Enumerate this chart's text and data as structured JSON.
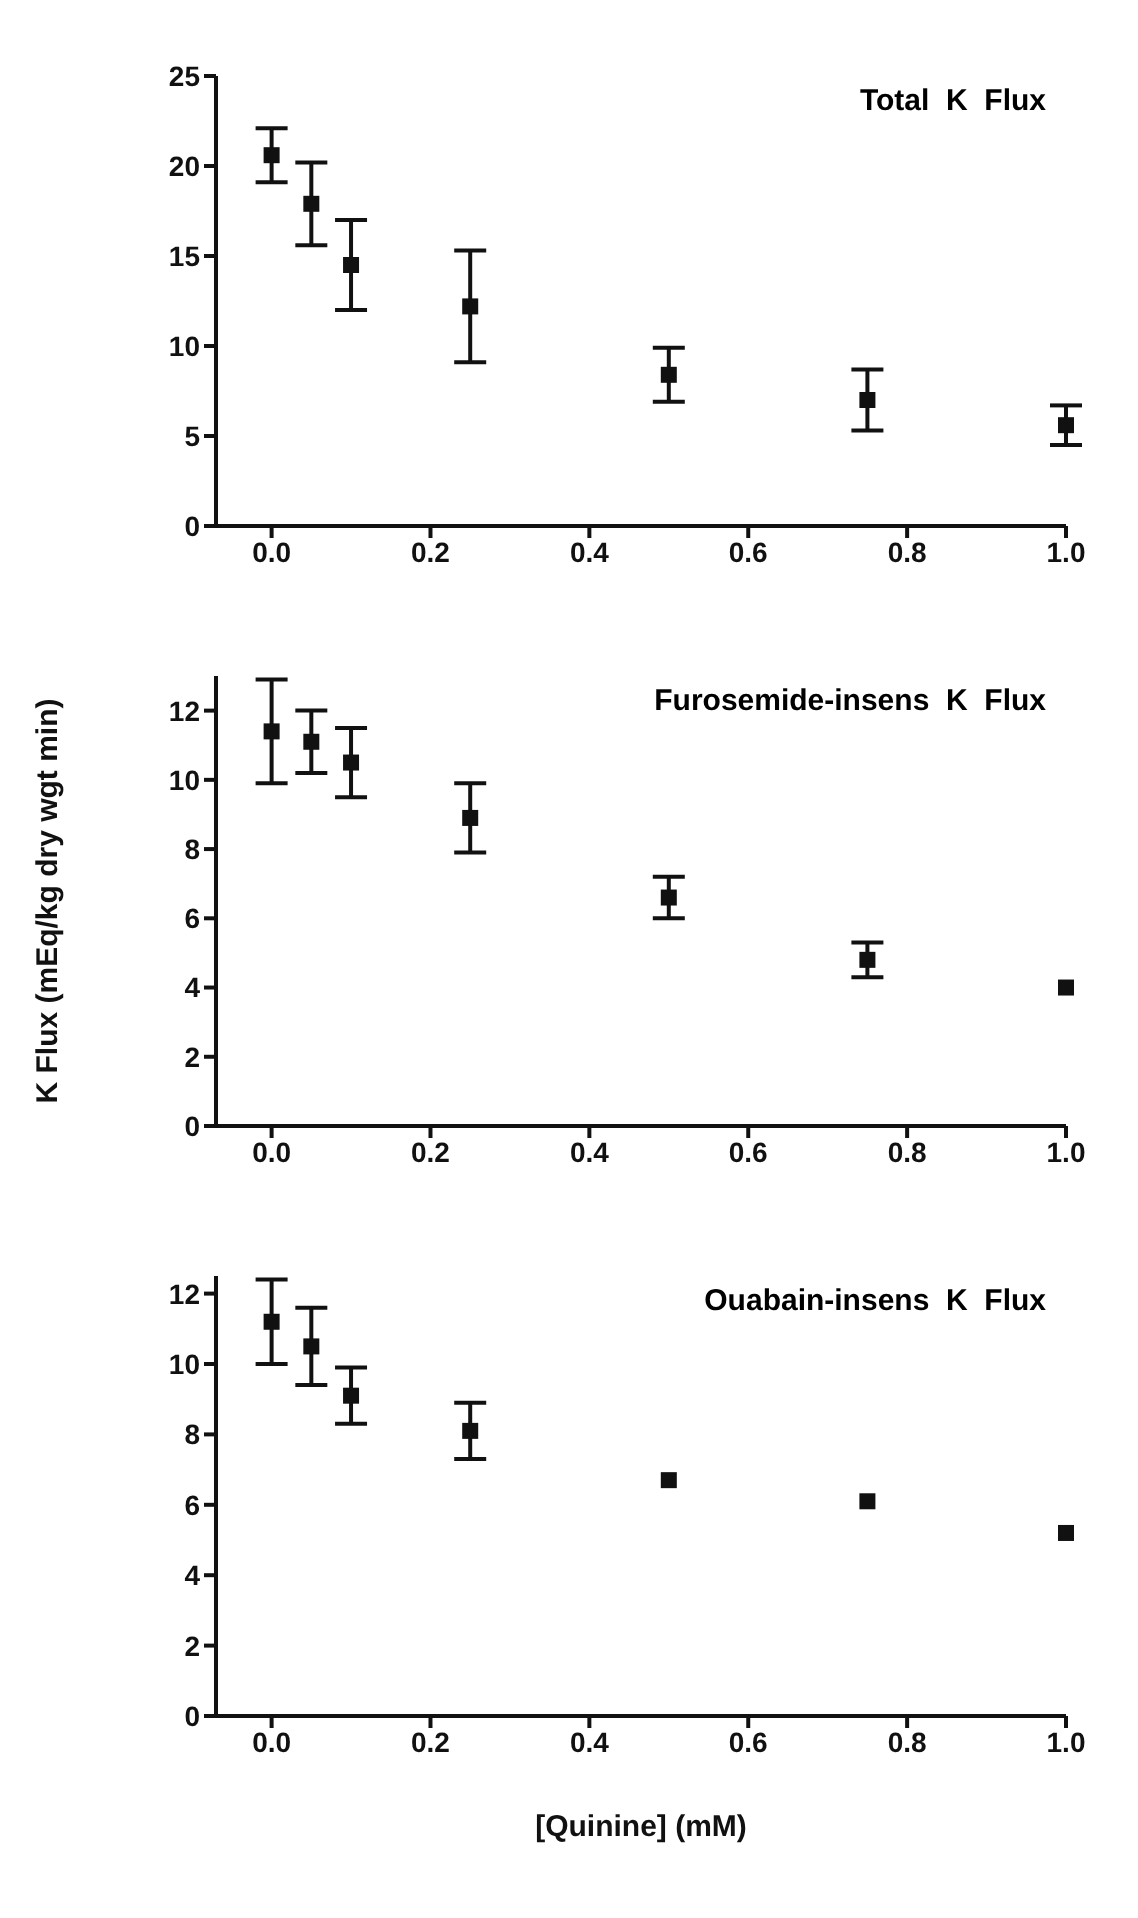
{
  "chart_data": [
    {
      "type": "scatter",
      "title": "Total  K  Flux",
      "x": [
        0,
        0.05,
        0.1,
        0.25,
        0.5,
        0.75,
        1.0
      ],
      "marker": "square",
      "series": [
        {
          "color": "#111111",
          "values": [
            20.6,
            17.9,
            14.5,
            12.2,
            8.4,
            7.0,
            5.6
          ],
          "errors": [
            1.5,
            2.3,
            2.5,
            3.1,
            1.5,
            1.7,
            1.1
          ]
        }
      ],
      "xlim": [
        -0.07,
        1.0
      ],
      "xticks": [
        {
          "value": 0,
          "label": "0.0"
        },
        {
          "value": 0.2,
          "label": "0.2"
        },
        {
          "value": 0.4,
          "label": "0.4"
        },
        {
          "value": 0.6,
          "label": "0.6"
        },
        {
          "value": 0.8,
          "label": "0.8"
        },
        {
          "value": 1.0,
          "label": "1.0"
        }
      ],
      "ylim": [
        0,
        25
      ],
      "yticks": [
        0,
        5,
        10,
        15,
        20,
        25
      ],
      "grid": false,
      "legend": false
    },
    {
      "type": "scatter",
      "title": "Furosemide-insens  K  Flux",
      "ylabel": "K  Flux  (mEq/kg  dry  wgt  min)",
      "x": [
        0,
        0.05,
        0.1,
        0.25,
        0.5,
        0.75,
        1.0
      ],
      "marker": "square",
      "series": [
        {
          "color": "#111111",
          "values": [
            11.4,
            11.1,
            10.5,
            8.9,
            6.6,
            4.8,
            4.0
          ],
          "errors": [
            1.5,
            0.9,
            1.0,
            1.0,
            0.6,
            0.5,
            null
          ]
        }
      ],
      "xlim": [
        -0.07,
        1.0
      ],
      "xticks": [
        {
          "value": 0,
          "label": "0.0"
        },
        {
          "value": 0.2,
          "label": "0.2"
        },
        {
          "value": 0.4,
          "label": "0.4"
        },
        {
          "value": 0.6,
          "label": "0.6"
        },
        {
          "value": 0.8,
          "label": "0.8"
        },
        {
          "value": 1.0,
          "label": "1.0"
        }
      ],
      "ylim": [
        0,
        13
      ],
      "yticks": [
        0,
        2,
        4,
        6,
        8,
        10,
        12
      ],
      "grid": false,
      "legend": false
    },
    {
      "type": "scatter",
      "title": "Ouabain-insens  K  Flux",
      "xlabel": "[Quinine]  (mM)",
      "x": [
        0,
        0.05,
        0.1,
        0.25,
        0.5,
        0.75,
        1.0
      ],
      "marker": "square",
      "series": [
        {
          "color": "#111111",
          "values": [
            11.2,
            10.5,
            9.1,
            8.1,
            6.7,
            6.1,
            5.2
          ],
          "errors": [
            1.2,
            1.1,
            0.8,
            0.8,
            null,
            null,
            null
          ]
        }
      ],
      "xlim": [
        -0.07,
        1.0
      ],
      "xticks": [
        {
          "value": 0,
          "label": "0.0"
        },
        {
          "value": 0.2,
          "label": "0.2"
        },
        {
          "value": 0.4,
          "label": "0.4"
        },
        {
          "value": 0.6,
          "label": "0.6"
        },
        {
          "value": 0.8,
          "label": "0.8"
        },
        {
          "value": 1.0,
          "label": "1.0"
        }
      ],
      "ylim": [
        0,
        12.5
      ],
      "yticks": [
        0,
        2,
        4,
        6,
        8,
        10,
        12
      ],
      "grid": false,
      "legend": false
    }
  ]
}
